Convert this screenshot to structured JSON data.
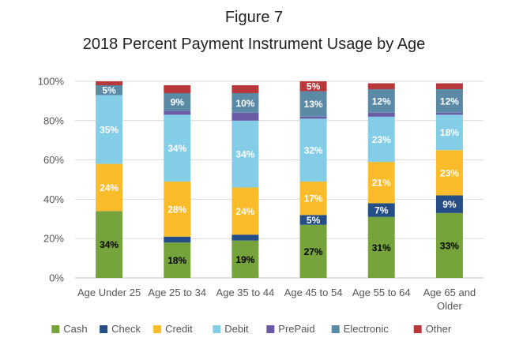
{
  "chart_data": {
    "type": "bar",
    "stacked": true,
    "title_line1": "Figure 7",
    "title": "2018 Percent Payment Instrument Usage by Age",
    "xlabel": "",
    "ylabel": "",
    "ylim": [
      0,
      100
    ],
    "yticks": [
      "0%",
      "20%",
      "40%",
      "60%",
      "80%",
      "100%"
    ],
    "categories": [
      [
        "Age Under 25"
      ],
      [
        "Age 25 to 34"
      ],
      [
        "Age 35 to 44"
      ],
      [
        "Age 45 to 54"
      ],
      [
        "Age 55 to 64"
      ],
      [
        "Age 65 and",
        "Older"
      ]
    ],
    "series": [
      {
        "name": "Cash",
        "color": "#77a33c",
        "values": [
          34,
          18,
          19,
          27,
          31,
          33
        ],
        "labels": [
          "34%",
          "18%",
          "19%",
          "27%",
          "31%",
          "33%"
        ],
        "label_color": "#000000"
      },
      {
        "name": "Check",
        "color": "#264e86",
        "values": [
          0,
          3,
          3,
          5,
          7,
          9
        ],
        "labels": [
          "",
          "",
          "",
          "5%",
          "7%",
          "9%"
        ],
        "label_color": "#ffffff"
      },
      {
        "name": "Credit",
        "color": "#fbbc2c",
        "values": [
          24,
          28,
          24,
          17,
          21,
          23
        ],
        "labels": [
          "24%",
          "28%",
          "24%",
          "17%",
          "21%",
          "23%"
        ],
        "label_color": "#ffffff"
      },
      {
        "name": "Debit",
        "color": "#84cde6",
        "values": [
          35,
          34,
          34,
          32,
          23,
          18
        ],
        "labels": [
          "35%",
          "34%",
          "34%",
          "32%",
          "23%",
          "18%"
        ],
        "label_color": "#ffffff"
      },
      {
        "name": "PrePaid",
        "color": "#6b5aa6",
        "values": [
          0,
          2,
          4,
          1,
          2,
          1
        ],
        "labels": [
          "",
          "",
          "",
          "",
          "",
          ""
        ],
        "label_color": "#ffffff"
      },
      {
        "name": "Electronic",
        "color": "#5a8aa6",
        "values": [
          5,
          9,
          10,
          13,
          12,
          12
        ],
        "labels": [
          "5%",
          "9%",
          "10%",
          "13%",
          "12%",
          "12%"
        ],
        "label_color": "#ffffff"
      },
      {
        "name": "Other",
        "color": "#b7373a",
        "values": [
          2,
          4,
          4,
          5,
          3,
          3
        ],
        "labels": [
          "",
          "",
          "",
          "5%",
          "",
          ""
        ],
        "label_color": "#ffffff"
      }
    ],
    "legend_position": "bottom"
  }
}
